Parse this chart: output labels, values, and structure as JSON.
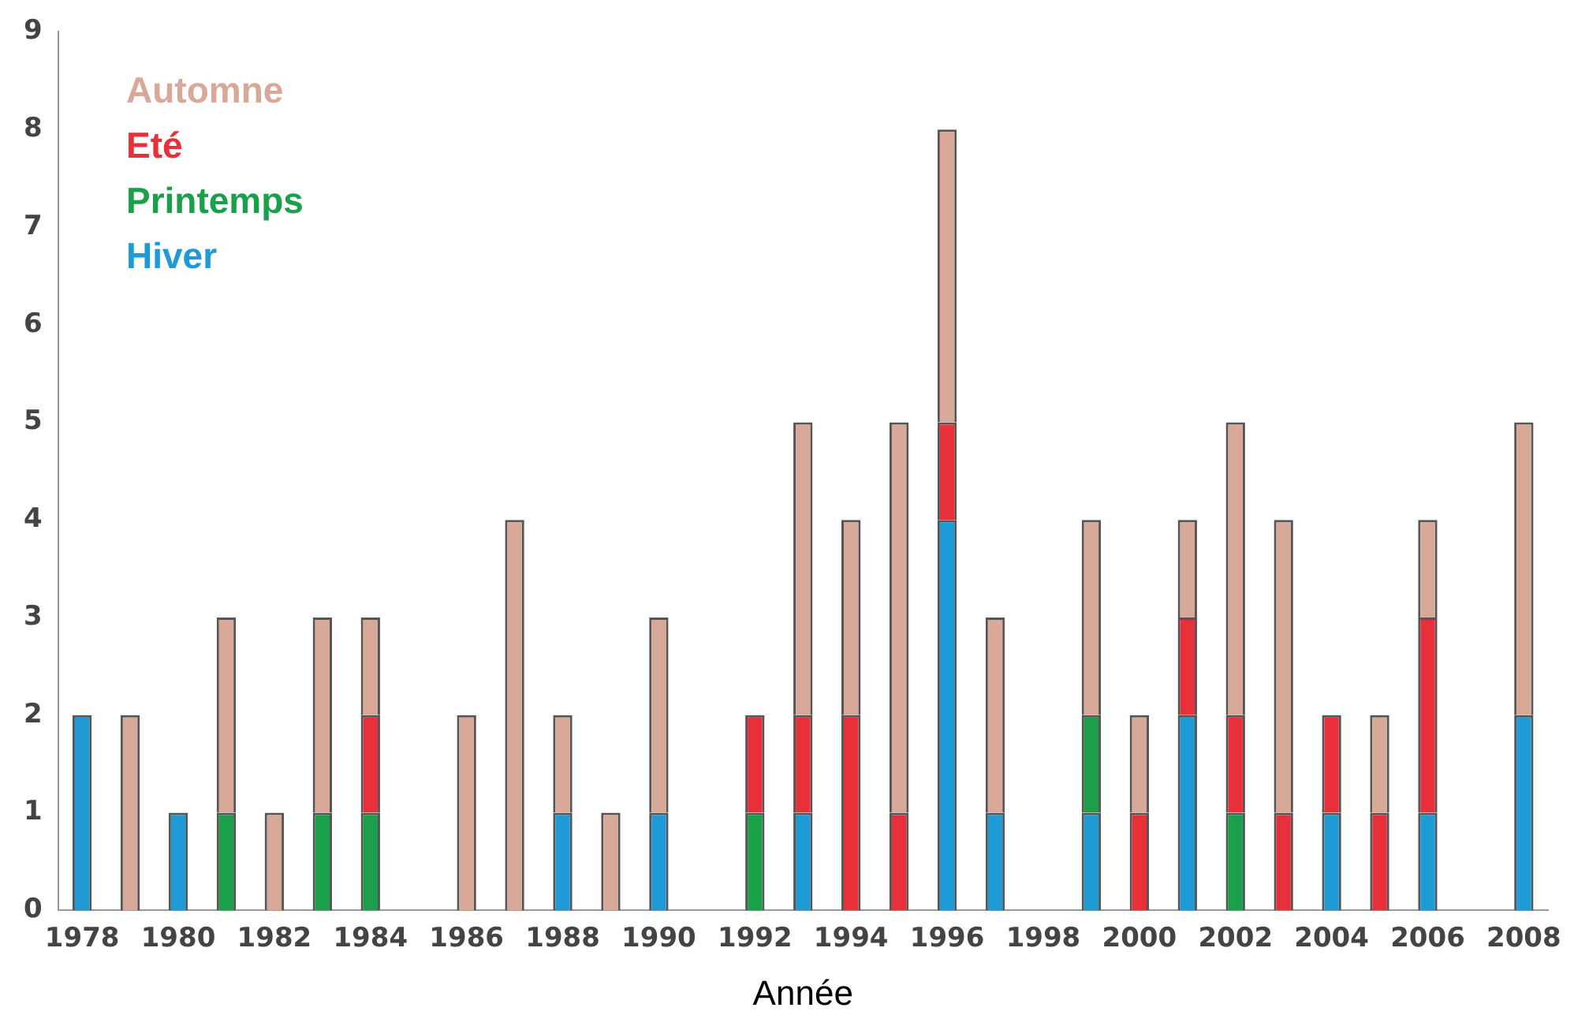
{
  "chart_data": {
    "type": "bar",
    "stacked": true,
    "xlabel": "Année",
    "categories": [
      "1978",
      null,
      "1980",
      null,
      "1982",
      null,
      "1984",
      null,
      "1986",
      null,
      "1988",
      null,
      "1990",
      null,
      "1992",
      null,
      "1994",
      null,
      "1996",
      null,
      "1998",
      null,
      "2000",
      null,
      "2002",
      null,
      "2004",
      null,
      "2006",
      null,
      "2008"
    ],
    "series": [
      {
        "name": "Hiver",
        "color": "#1e9ad6",
        "values": [
          2,
          0,
          1,
          0,
          0,
          0,
          0,
          0,
          0,
          0,
          1,
          0,
          1,
          0,
          0,
          1,
          0,
          0,
          4,
          1,
          0,
          1,
          0,
          2,
          0,
          0,
          1,
          0,
          1,
          0,
          2
        ]
      },
      {
        "name": "Printemps",
        "color": "#1aa04a",
        "values": [
          0,
          0,
          0,
          1,
          0,
          1,
          1,
          0,
          0,
          0,
          0,
          0,
          0,
          0,
          1,
          0,
          0,
          0,
          0,
          0,
          0,
          1,
          0,
          0,
          1,
          0,
          0,
          0,
          0,
          0,
          0
        ]
      },
      {
        "name": "Eté",
        "color": "#e8303a",
        "values": [
          0,
          0,
          0,
          0,
          0,
          0,
          1,
          0,
          0,
          0,
          0,
          0,
          0,
          0,
          1,
          1,
          2,
          1,
          1,
          0,
          0,
          0,
          1,
          1,
          1,
          1,
          1,
          1,
          2,
          0,
          0
        ]
      },
      {
        "name": "Automne",
        "color": "#d8a898",
        "values": [
          0,
          2,
          0,
          2,
          1,
          2,
          1,
          0,
          2,
          4,
          1,
          1,
          2,
          0,
          0,
          3,
          2,
          4,
          3,
          2,
          0,
          2,
          1,
          1,
          3,
          3,
          0,
          1,
          1,
          0,
          3
        ]
      }
    ],
    "ylim": [
      0,
      9
    ],
    "yticks": [
      0,
      1,
      2,
      3,
      4,
      5,
      6,
      7,
      8,
      9
    ],
    "grid": false,
    "legend": "top left"
  }
}
